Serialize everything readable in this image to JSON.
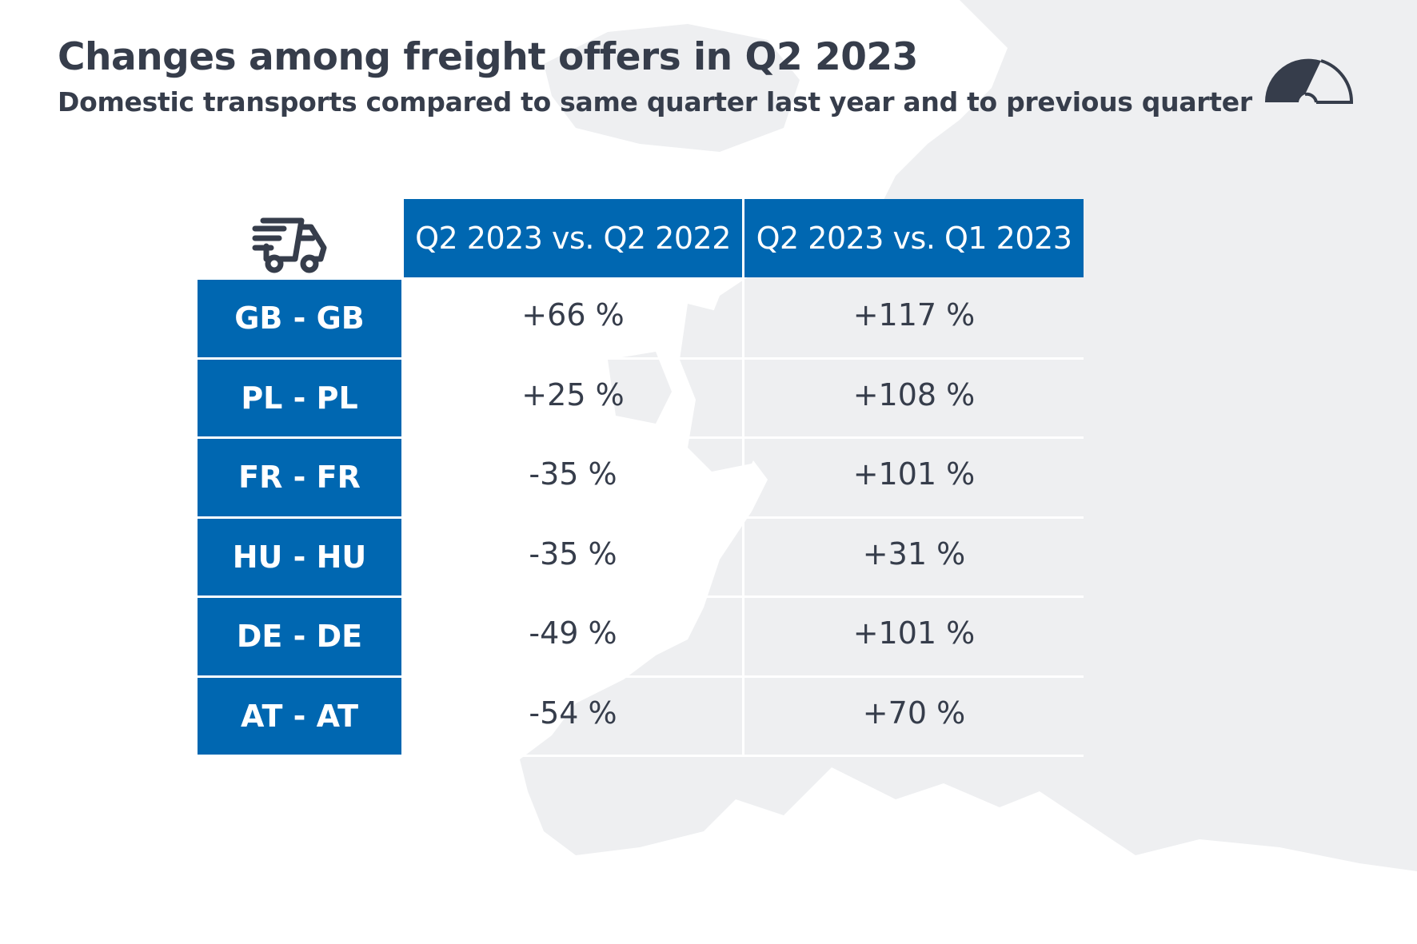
{
  "header": {
    "title": "Changes among freight offers in Q2 2023",
    "subtitle": "Domestic transports compared to same quarter last year and to previous quarter",
    "icons": [
      "gauge-icon",
      "truck-icon"
    ]
  },
  "colors": {
    "header_bg": "#0067b1",
    "text": "#363d4b",
    "map": "#eeeff1"
  },
  "chart_data": {
    "type": "table",
    "title": "Changes among freight offers in Q2 2023",
    "subtitle": "Domestic transports compared to same quarter last year and to previous quarter",
    "columns": [
      "Q2 2023 vs. Q2 2022",
      "Q2 2023 vs. Q1 2023"
    ],
    "rows": [
      {
        "label": "GB - GB",
        "values": [
          "+66 %",
          "+117 %"
        ]
      },
      {
        "label": "PL - PL",
        "values": [
          "+25 %",
          "+108 %"
        ]
      },
      {
        "label": "FR - FR",
        "values": [
          "-35 %",
          "+101 %"
        ]
      },
      {
        "label": "HU - HU",
        "values": [
          "-35 %",
          "+31 %"
        ]
      },
      {
        "label": "DE - DE",
        "values": [
          "-49 %",
          "+101 %"
        ]
      },
      {
        "label": "AT - AT",
        "values": [
          "-54 %",
          "+70 %"
        ]
      }
    ]
  }
}
